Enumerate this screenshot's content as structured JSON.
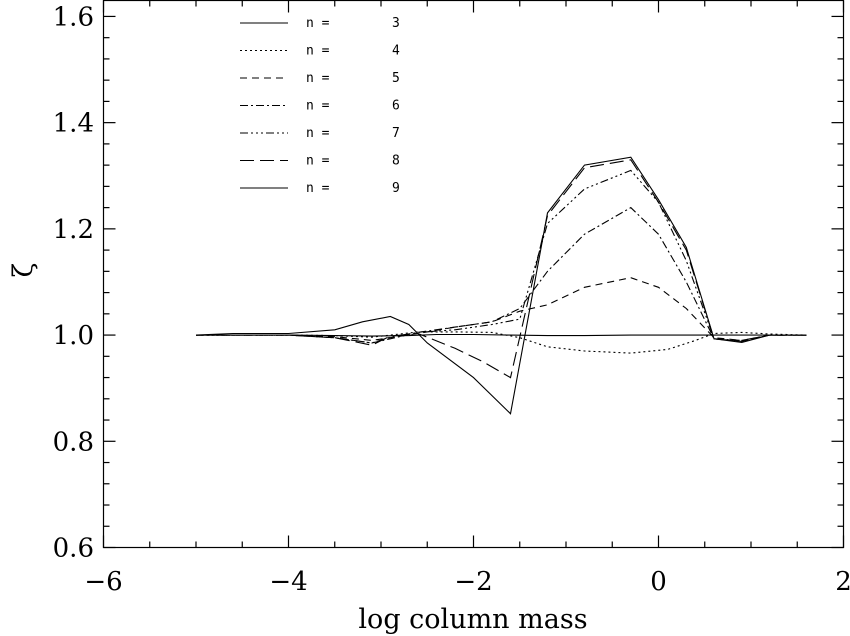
{
  "chart_data": {
    "type": "line",
    "xlabel": "log column mass",
    "ylabel": "ζ",
    "xlim": [
      -6,
      2
    ],
    "ylim": [
      0.6,
      1.63
    ],
    "xticks": [
      -6,
      -4,
      -2,
      0,
      2
    ],
    "xtick_labels": [
      "−6",
      "−4",
      "−2",
      "0",
      "2"
    ],
    "yticks": [
      0.6,
      0.8,
      1.0,
      1.2,
      1.4,
      1.6
    ],
    "ytick_labels": [
      "0.6",
      "0.8",
      "1.0",
      "1.2",
      "1.4",
      "1.6"
    ],
    "legend_position": "top-left",
    "series": [
      {
        "name": "3",
        "label": "n =",
        "number": "3",
        "dash": "",
        "x": [
          -5.0,
          -4.6,
          -4.0,
          -3.5,
          -3.1,
          -2.7,
          -2.4,
          -2.0,
          -1.6,
          -1.2,
          -0.8,
          -0.3,
          0.0,
          0.3,
          0.6,
          0.9,
          1.2,
          1.6
        ],
        "y": [
          1.0,
          1.0,
          1.0,
          0.999,
          0.998,
          0.999,
          1.001,
          1.001,
          1.0,
          0.999,
          0.999,
          1.0,
          1.0,
          1.0,
          1.0,
          1.0,
          1.0,
          1.0
        ]
      },
      {
        "name": "4",
        "label": "n =",
        "number": "4",
        "dash": "2,3",
        "x": [
          -5.0,
          -4.6,
          -4.0,
          -3.5,
          -3.1,
          -2.9,
          -2.6,
          -2.2,
          -1.8,
          -1.5,
          -1.2,
          -0.8,
          -0.3,
          0.1,
          0.4,
          0.6,
          0.9,
          1.2,
          1.6
        ],
        "y": [
          1.0,
          1.0,
          1.0,
          0.999,
          0.996,
          1.0,
          1.006,
          1.006,
          1.005,
          0.995,
          0.978,
          0.97,
          0.966,
          0.973,
          0.99,
          1.003,
          1.005,
          1.002,
          1.0
        ]
      },
      {
        "name": "5",
        "label": "n =",
        "number": "5",
        "dash": "7,5",
        "x": [
          -5.0,
          -4.6,
          -4.0,
          -3.5,
          -3.1,
          -2.9,
          -2.6,
          -2.2,
          -1.8,
          -1.5,
          -1.2,
          -0.8,
          -0.3,
          0.0,
          0.3,
          0.6,
          0.9,
          1.2,
          1.6
        ],
        "y": [
          1.0,
          1.0,
          1.0,
          0.997,
          0.99,
          0.995,
          1.003,
          1.015,
          1.025,
          1.045,
          1.057,
          1.09,
          1.108,
          1.09,
          1.05,
          0.995,
          0.99,
          1.0,
          1.0
        ]
      },
      {
        "name": "6",
        "label": "n =",
        "number": "6",
        "dash": "8,3,2,3",
        "x": [
          -5.0,
          -4.6,
          -4.0,
          -3.5,
          -3.1,
          -2.9,
          -2.6,
          -2.2,
          -1.8,
          -1.5,
          -1.2,
          -0.8,
          -0.3,
          0.0,
          0.3,
          0.6,
          0.9,
          1.2,
          1.6
        ],
        "y": [
          1.0,
          1.0,
          1.0,
          0.995,
          0.985,
          0.993,
          1.005,
          1.015,
          1.025,
          1.05,
          1.12,
          1.19,
          1.24,
          1.19,
          1.1,
          0.993,
          0.99,
          1.0,
          1.0
        ]
      },
      {
        "name": "7",
        "label": "n =",
        "number": "7",
        "dash": "8,3,2,3,2,3,2,3",
        "x": [
          -5.0,
          -4.6,
          -4.0,
          -3.5,
          -3.1,
          -2.9,
          -2.6,
          -2.2,
          -1.8,
          -1.5,
          -1.2,
          -0.8,
          -0.3,
          0.0,
          0.3,
          0.6,
          0.9,
          1.2,
          1.6
        ],
        "y": [
          1.0,
          1.0,
          1.0,
          0.995,
          0.985,
          0.996,
          1.005,
          1.01,
          1.02,
          1.03,
          1.21,
          1.275,
          1.31,
          1.25,
          1.14,
          0.993,
          0.988,
          1.0,
          1.0
        ]
      },
      {
        "name": "8",
        "label": "n =",
        "number": "8",
        "dash": "14,6",
        "x": [
          -5.0,
          -4.6,
          -4.0,
          -3.5,
          -3.1,
          -2.9,
          -2.6,
          -2.2,
          -1.9,
          -1.6,
          -1.2,
          -0.8,
          -0.3,
          0.0,
          0.3,
          0.6,
          0.9,
          1.2,
          1.6
        ],
        "y": [
          1.0,
          1.0,
          1.0,
          0.995,
          0.981,
          0.998,
          1.003,
          0.975,
          0.95,
          0.92,
          1.225,
          1.315,
          1.33,
          1.25,
          1.16,
          0.993,
          0.988,
          1.0,
          1.0
        ]
      },
      {
        "name": "9",
        "label": "n =",
        "number": "9",
        "dash": "",
        "x": [
          -5.0,
          -4.6,
          -4.0,
          -3.5,
          -3.2,
          -2.9,
          -2.7,
          -2.5,
          -2.0,
          -1.6,
          -1.2,
          -0.8,
          -0.3,
          0.0,
          0.3,
          0.6,
          0.9,
          1.2,
          1.6
        ],
        "y": [
          1.0,
          1.003,
          1.003,
          1.01,
          1.025,
          1.035,
          1.02,
          0.985,
          0.92,
          0.852,
          1.23,
          1.32,
          1.335,
          1.255,
          1.165,
          0.993,
          0.986,
          1.0,
          1.0
        ]
      }
    ]
  }
}
